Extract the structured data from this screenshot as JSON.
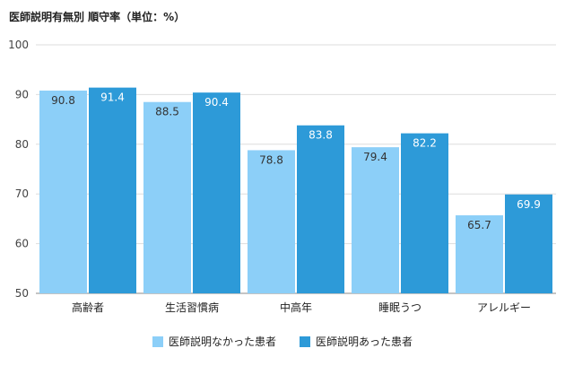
{
  "chart_data": {
    "type": "bar",
    "title": "医師説明有無別 順守率（単位：%）",
    "categories": [
      "高齢者",
      "生活習慣病",
      "中高年",
      "睡眠うつ",
      "アレルギー"
    ],
    "series": [
      {
        "name": "医師説明なかった患者",
        "values": [
          90.8,
          88.5,
          78.8,
          79.4,
          65.7
        ],
        "color": "#8ccff8"
      },
      {
        "name": "医師説明あった患者",
        "values": [
          91.4,
          90.4,
          83.8,
          82.2,
          69.9
        ],
        "color": "#2d9ad8"
      }
    ],
    "ylim": [
      50,
      100
    ],
    "yticks": [
      50,
      60,
      70,
      80,
      90,
      100
    ],
    "grid": true,
    "legend": "bottom"
  }
}
